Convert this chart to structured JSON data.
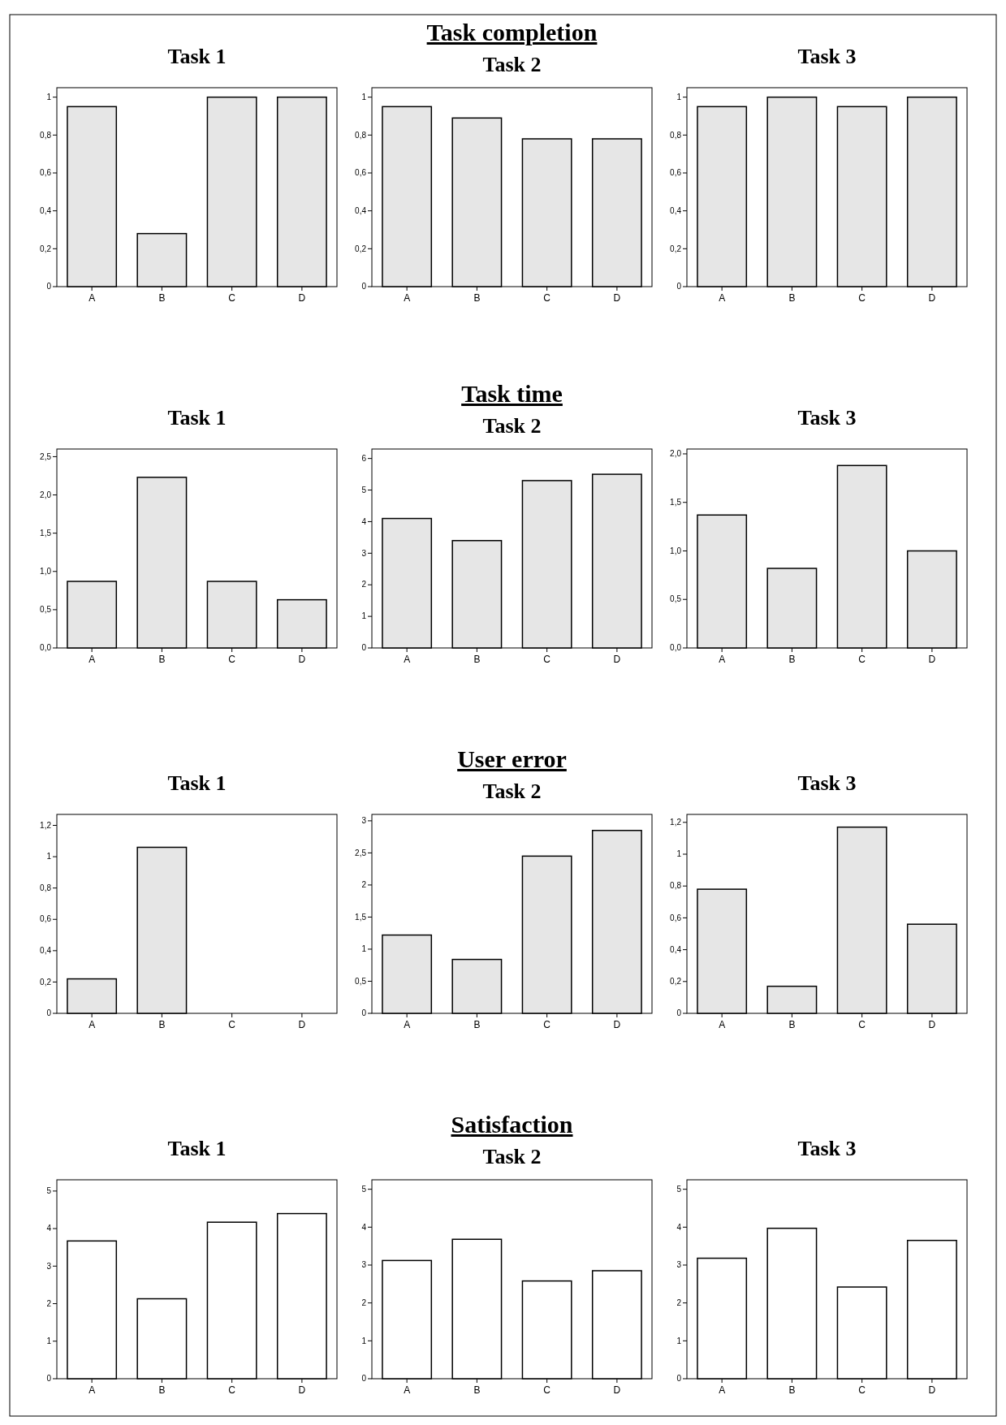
{
  "chart_data": [
    {
      "type": "bar",
      "title": "Task 1",
      "categories": [
        "A",
        "B",
        "C",
        "D"
      ],
      "values": [
        0.95,
        0.28,
        1.0,
        1.0
      ],
      "color": "#e6e6e6",
      "ylim": [
        0,
        1.05
      ],
      "yticks": [
        0,
        {
          "value": 0.2,
          "label": "0,2"
        },
        {
          "value": 0.4,
          "label": "0,4"
        },
        {
          "value": 0.6,
          "label": "0,6"
        },
        {
          "value": 0.8,
          "label": "0,8"
        },
        1
      ],
      "grid": false
    },
    {
      "type": "bar",
      "title": "Task 2",
      "annotations": [
        "Task completion"
      ],
      "categories": [
        "A",
        "B",
        "C",
        "D"
      ],
      "values": [
        0.95,
        0.89,
        0.78,
        0.78
      ],
      "color": "#e6e6e6",
      "ylim": [
        0,
        1.05
      ],
      "yticks": [
        0,
        {
          "value": 0.2,
          "label": "0,2"
        },
        {
          "value": 0.4,
          "label": "0,4"
        },
        {
          "value": 0.6,
          "label": "0,6"
        },
        {
          "value": 0.8,
          "label": "0,8"
        },
        1
      ],
      "grid": false
    },
    {
      "type": "bar",
      "title": "Task 3",
      "categories": [
        "A",
        "B",
        "C",
        "D"
      ],
      "values": [
        0.95,
        1.0,
        0.95,
        1.0
      ],
      "color": "#e6e6e6",
      "ylim": [
        0,
        1.05
      ],
      "yticks": [
        0,
        {
          "value": 0.2,
          "label": "0,2"
        },
        {
          "value": 0.4,
          "label": "0,4"
        },
        {
          "value": 0.6,
          "label": "0,6"
        },
        {
          "value": 0.8,
          "label": "0,8"
        },
        1
      ],
      "grid": false
    },
    {
      "type": "bar",
      "title": "Task 1",
      "categories": [
        "A",
        "B",
        "C",
        "D"
      ],
      "values": [
        0.87,
        2.23,
        0.87,
        0.63
      ],
      "color": "#e6e6e6",
      "ylim": [
        0,
        2.6
      ],
      "yticks": [
        {
          "value": 0,
          "label": "0,0"
        },
        {
          "value": 0.5,
          "label": "0,5"
        },
        {
          "value": 1,
          "label": "1,0"
        },
        {
          "value": 1.5,
          "label": "1,5"
        },
        {
          "value": 2,
          "label": "2,0"
        },
        {
          "value": 2.5,
          "label": "2,5"
        }
      ],
      "grid": false
    },
    {
      "type": "bar",
      "title": "Task 2",
      "annotations": [
        "Task time"
      ],
      "categories": [
        "A",
        "B",
        "C",
        "D"
      ],
      "values": [
        4.1,
        3.4,
        5.3,
        5.5
      ],
      "color": "#e6e6e6",
      "ylim": [
        0,
        6.3
      ],
      "yticks": [
        0,
        1,
        2,
        3,
        4,
        5,
        6
      ],
      "grid": false
    },
    {
      "type": "bar",
      "title": "Task 3",
      "categories": [
        "A",
        "B",
        "C",
        "D"
      ],
      "values": [
        1.37,
        0.82,
        1.88,
        1.0
      ],
      "color": "#e6e6e6",
      "ylim": [
        0,
        2.05
      ],
      "yticks": [
        {
          "value": 0,
          "label": "0,0"
        },
        {
          "value": 0.5,
          "label": "0,5"
        },
        {
          "value": 1,
          "label": "1,0"
        },
        {
          "value": 1.5,
          "label": "1,5"
        },
        {
          "value": 2,
          "label": "2,0"
        }
      ],
      "grid": false
    },
    {
      "type": "bar",
      "title": "Task 1",
      "categories": [
        "A",
        "B",
        "C",
        "D"
      ],
      "values": [
        0.22,
        1.06,
        0,
        0
      ],
      "color": "#e6e6e6",
      "ylim": [
        0,
        1.27
      ],
      "yticks": [
        0,
        {
          "value": 0.2,
          "label": "0,2"
        },
        {
          "value": 0.4,
          "label": "0,4"
        },
        {
          "value": 0.6,
          "label": "0,6"
        },
        {
          "value": 0.8,
          "label": "0,8"
        },
        1,
        {
          "value": 1.2,
          "label": "1,2"
        }
      ],
      "grid": false
    },
    {
      "type": "bar",
      "title": "Task 2",
      "annotations": [
        "User error"
      ],
      "categories": [
        "A",
        "B",
        "C",
        "D"
      ],
      "values": [
        1.22,
        0.84,
        2.45,
        2.85
      ],
      "color": "#e6e6e6",
      "ylim": [
        0,
        3.1
      ],
      "yticks": [
        0,
        {
          "value": 0.5,
          "label": "0,5"
        },
        1,
        {
          "value": 1.5,
          "label": "1,5"
        },
        2,
        {
          "value": 2.5,
          "label": "2,5"
        },
        3
      ],
      "grid": false
    },
    {
      "type": "bar",
      "title": "Task 3",
      "categories": [
        "A",
        "B",
        "C",
        "D"
      ],
      "values": [
        0.78,
        0.17,
        1.17,
        0.56
      ],
      "color": "#e6e6e6",
      "ylim": [
        0,
        1.25
      ],
      "yticks": [
        0,
        {
          "value": 0.2,
          "label": "0,2"
        },
        {
          "value": 0.4,
          "label": "0,4"
        },
        {
          "value": 0.6,
          "label": "0,6"
        },
        {
          "value": 0.8,
          "label": "0,8"
        },
        1,
        {
          "value": 1.2,
          "label": "1,2"
        }
      ],
      "grid": false
    },
    {
      "type": "bar",
      "title": "Task 1",
      "categories": [
        "A",
        "B",
        "C",
        "D"
      ],
      "values": [
        3.67,
        2.13,
        4.17,
        4.4
      ],
      "color": "#ffffff",
      "ylim": [
        0,
        5.3
      ],
      "yticks": [
        0,
        1,
        2,
        3,
        4,
        5
      ],
      "grid": false
    },
    {
      "type": "bar",
      "title": "Task 2",
      "annotations": [
        "Satisfaction"
      ],
      "categories": [
        "A",
        "B",
        "C",
        "D"
      ],
      "values": [
        3.12,
        3.68,
        2.58,
        2.85
      ],
      "color": "#ffffff",
      "ylim": [
        0,
        5.25
      ],
      "yticks": [
        0,
        1,
        2,
        3,
        4,
        5
      ],
      "grid": false
    },
    {
      "type": "bar",
      "title": "Task 3",
      "categories": [
        "A",
        "B",
        "C",
        "D"
      ],
      "values": [
        3.18,
        3.97,
        2.42,
        3.65
      ],
      "color": "#ffffff",
      "ylim": [
        0,
        5.25
      ],
      "yticks": [
        0,
        1,
        2,
        3,
        4,
        5
      ],
      "grid": false
    }
  ]
}
